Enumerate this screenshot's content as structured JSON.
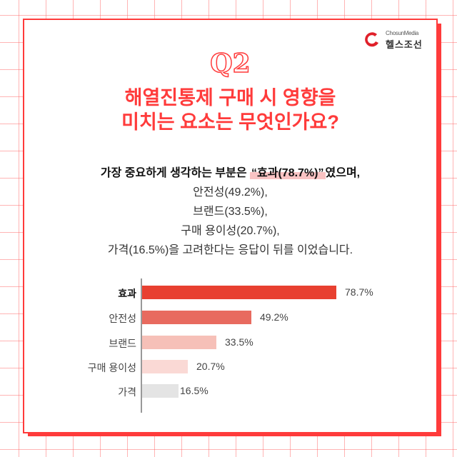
{
  "brand": {
    "small": "ChosunMedia",
    "name": "헬스조선"
  },
  "question_label": "Q2",
  "title": {
    "line1": "해열진통제 구매 시 영향을",
    "line2": "미치는 요소는 무엇인가요?"
  },
  "body": {
    "lead_prefix": "가장 중요하게 생각하는 부분은 ",
    "lead_highlight": "“효과(78.7%)”",
    "lead_suffix": "였으며,",
    "line2": "안전성(49.2%),",
    "line3": "브랜드(33.5%),",
    "line4": "구매 용이성(20.7%),",
    "line5": "가격(16.5%)을 고려한다는 응답이 뒤를 이었습니다."
  },
  "colors": {
    "accent": "#ff3b3b",
    "highlight": "#f9c3c3"
  },
  "chart_data": {
    "type": "bar",
    "orientation": "horizontal",
    "title": "",
    "xlabel": "",
    "ylabel": "",
    "categories": [
      "효과",
      "안전성",
      "브랜드",
      "구매 용이성",
      "가격"
    ],
    "values": [
      78.7,
      49.2,
      33.5,
      20.7,
      16.5
    ],
    "value_labels": [
      "78.7%",
      "49.2%",
      "33.5%",
      "20.7%",
      "16.5%"
    ],
    "bar_colors": [
      "#e84030",
      "#e86a5f",
      "#f6c0b8",
      "#fad9d5",
      "#e4e4e4"
    ],
    "unit": "%",
    "grid": false,
    "legend": false
  }
}
